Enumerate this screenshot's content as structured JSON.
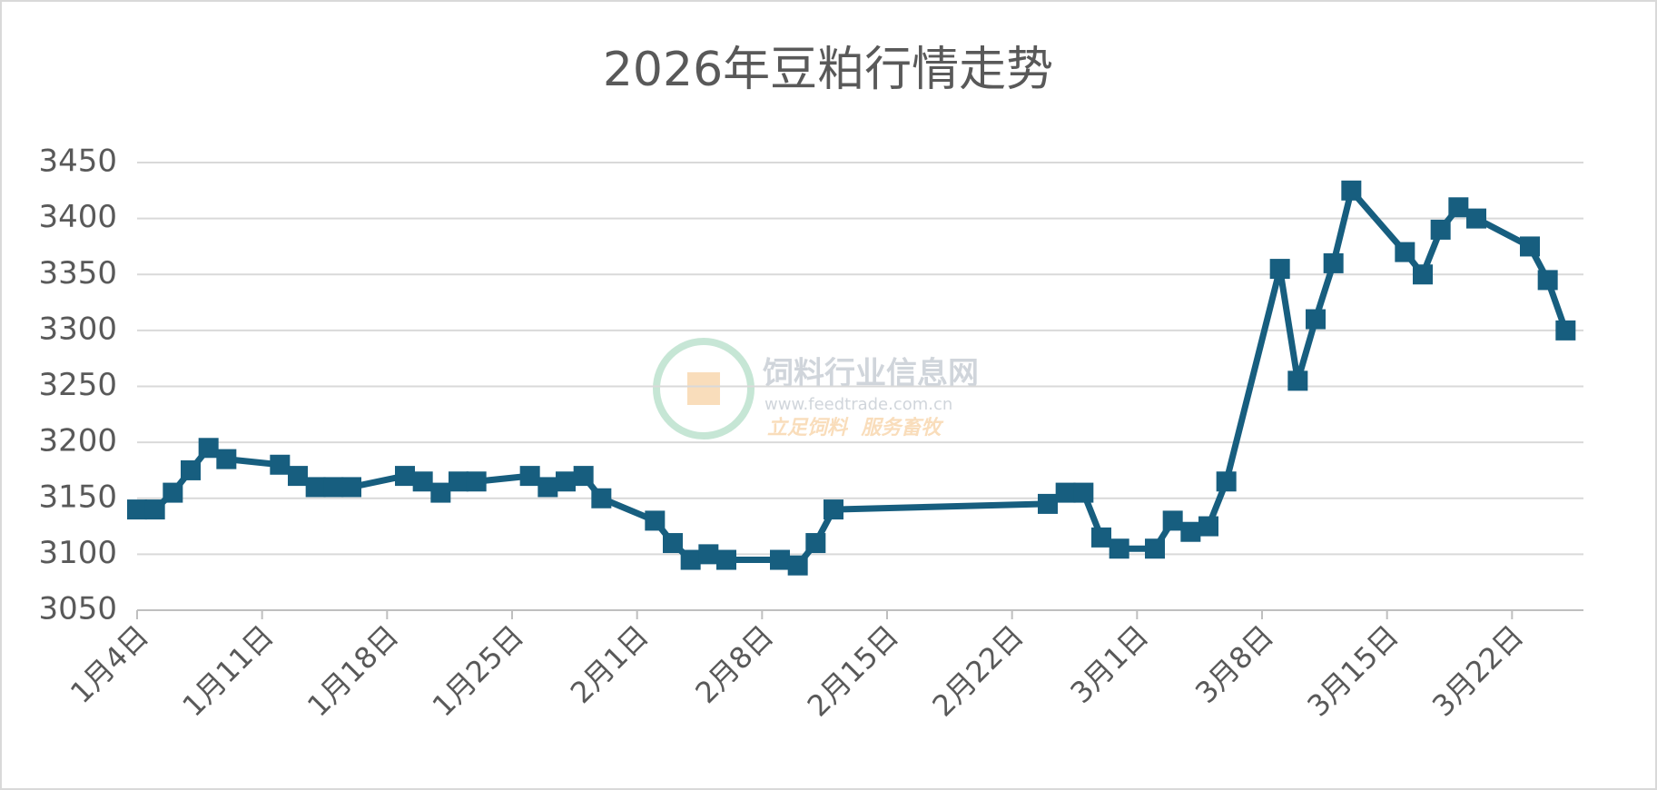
{
  "chart_data": {
    "type": "line",
    "title": "2026年豆粕行情走势",
    "x": [
      "01-04",
      "01-05",
      "01-06",
      "01-07",
      "01-08",
      "01-09",
      "01-12",
      "01-13",
      "01-14",
      "01-15",
      "01-16",
      "01-19",
      "01-20",
      "01-21",
      "01-22",
      "01-23",
      "01-26",
      "01-27",
      "01-28",
      "01-29",
      "01-30",
      "02-02",
      "02-03",
      "02-04",
      "02-05",
      "02-06",
      "02-09",
      "02-10",
      "02-11",
      "02-12",
      "02-24",
      "02-25",
      "02-26",
      "02-27",
      "02-28",
      "03-02",
      "03-03",
      "03-04",
      "03-05",
      "03-06",
      "03-09",
      "03-10",
      "03-11",
      "03-12",
      "03-13",
      "03-16",
      "03-17",
      "03-18",
      "03-19",
      "03-20",
      "03-23",
      "03-24",
      "03-25"
    ],
    "series": [
      {
        "name": "豆粕",
        "color": "#175e7f",
        "values": [
          3140,
          3140,
          3155,
          3175,
          3195,
          3185,
          3180,
          3170,
          3160,
          3160,
          3160,
          3170,
          3165,
          3155,
          3165,
          3165,
          3170,
          3160,
          3165,
          3170,
          3150,
          3130,
          3110,
          3095,
          3100,
          3095,
          3095,
          3090,
          3110,
          3140,
          3145,
          3155,
          3155,
          3115,
          3105,
          3105,
          3130,
          3120,
          3125,
          3165,
          3355,
          3255,
          3310,
          3360,
          3425,
          3370,
          3350,
          3390,
          3410,
          3400,
          3375,
          3345,
          3300
        ]
      }
    ],
    "xlim": [
      "01-04",
      "03-26"
    ],
    "xticks": [
      {
        "value": "01-04",
        "label": "1月4日"
      },
      {
        "value": "01-11",
        "label": "1月11日"
      },
      {
        "value": "01-18",
        "label": "1月18日"
      },
      {
        "value": "01-25",
        "label": "1月25日"
      },
      {
        "value": "02-01",
        "label": "2月1日"
      },
      {
        "value": "02-08",
        "label": "2月8日"
      },
      {
        "value": "02-15",
        "label": "2月15日"
      },
      {
        "value": "02-22",
        "label": "2月22日"
      },
      {
        "value": "03-01",
        "label": "3月1日"
      },
      {
        "value": "03-08",
        "label": "3月8日"
      },
      {
        "value": "03-15",
        "label": "3月15日"
      },
      {
        "value": "03-22",
        "label": "3月22日"
      }
    ],
    "ylim": [
      3050,
      3450
    ],
    "yticks": [
      3050,
      3100,
      3150,
      3200,
      3250,
      3300,
      3350,
      3400,
      3450
    ],
    "grid": true,
    "watermark": {
      "name": "饲料行业信息网",
      "url": "www.feedtrade.com.cn",
      "slogan": "立足饲料  服务畜牧"
    }
  }
}
